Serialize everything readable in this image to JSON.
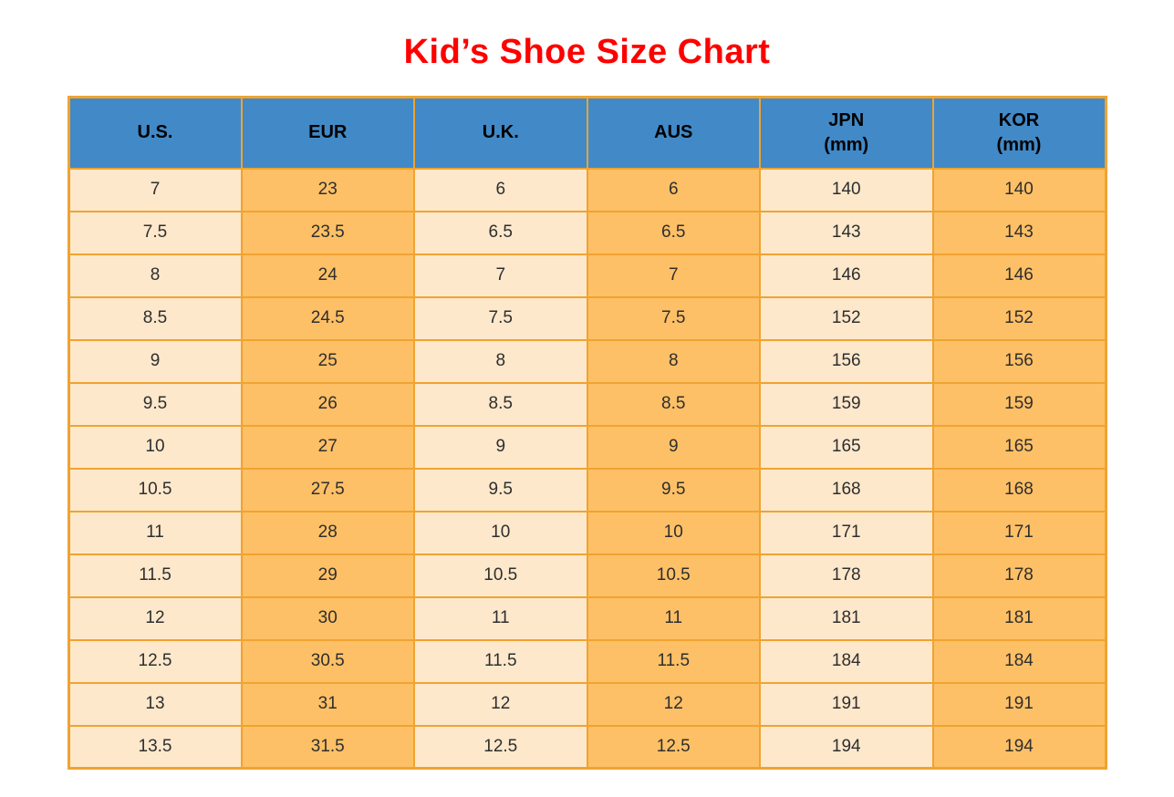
{
  "chart_data": {
    "type": "table",
    "title": "Kid’s Shoe Size Chart",
    "columns": [
      {
        "key": "us",
        "label": "U.S.",
        "sublabel": ""
      },
      {
        "key": "eur",
        "label": "EUR",
        "sublabel": ""
      },
      {
        "key": "uk",
        "label": "U.K.",
        "sublabel": ""
      },
      {
        "key": "aus",
        "label": "AUS",
        "sublabel": ""
      },
      {
        "key": "jpn",
        "label": "JPN",
        "sublabel": "(mm)"
      },
      {
        "key": "kor",
        "label": "KOR",
        "sublabel": "(mm)"
      }
    ],
    "rows": [
      [
        "7",
        "23",
        "6",
        "6",
        "140",
        "140"
      ],
      [
        "7.5",
        "23.5",
        "6.5",
        "6.5",
        "143",
        "143"
      ],
      [
        "8",
        "24",
        "7",
        "7",
        "146",
        "146"
      ],
      [
        "8.5",
        "24.5",
        "7.5",
        "7.5",
        "152",
        "152"
      ],
      [
        "9",
        "25",
        "8",
        "8",
        "156",
        "156"
      ],
      [
        "9.5",
        "26",
        "8.5",
        "8.5",
        "159",
        "159"
      ],
      [
        "10",
        "27",
        "9",
        "9",
        "165",
        "165"
      ],
      [
        "10.5",
        "27.5",
        "9.5",
        "9.5",
        "168",
        "168"
      ],
      [
        "11",
        "28",
        "10",
        "10",
        "171",
        "171"
      ],
      [
        "11.5",
        "29",
        "10.5",
        "10.5",
        "178",
        "178"
      ],
      [
        "12",
        "30",
        "11",
        "11",
        "181",
        "181"
      ],
      [
        "12.5",
        "30.5",
        "11.5",
        "11.5",
        "184",
        "184"
      ],
      [
        "13",
        "31",
        "12",
        "12",
        "191",
        "191"
      ],
      [
        "13.5",
        "31.5",
        "12.5",
        "12.5",
        "194",
        "194"
      ]
    ]
  },
  "colors": {
    "title_color": "#FF0000",
    "header_bg": "#4289C7",
    "header_text": "#000000",
    "col_light": "#FDE8CC",
    "col_orange": "#FEC066",
    "border_color": "#F0A330",
    "cell_text": "#2E2E2E"
  }
}
